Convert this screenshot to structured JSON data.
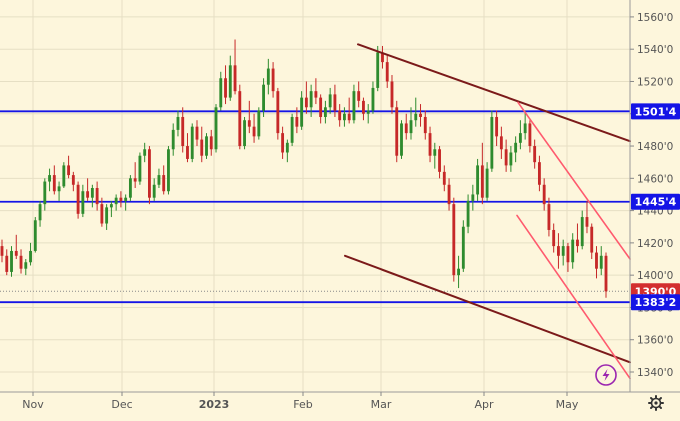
{
  "chart_data": {
    "type": "candlestick",
    "title": "",
    "x_labels": [
      "Nov",
      "Dec",
      "2023",
      "Feb",
      "Mar",
      "Apr",
      "May"
    ],
    "y_ticks": [
      "1560'0",
      "1540'0",
      "1520'0",
      "1500'0",
      "1480'0",
      "1460'0",
      "1440'0",
      "1420'0",
      "1400'0",
      "1380'0",
      "1360'0",
      "1340'0"
    ],
    "y_range": [
      1335,
      1570
    ],
    "price_tags": [
      {
        "label": "1501'4",
        "value": 1501.5,
        "style": "level"
      },
      {
        "label": "1445'4",
        "value": 1445.5,
        "style": "level"
      },
      {
        "label": "1390'0",
        "value": 1390.0,
        "style": "last"
      },
      {
        "label": "1383'2",
        "value": 1383.25,
        "style": "level"
      }
    ],
    "horizontal_levels": [
      1501.5,
      1445.5,
      1383.25
    ],
    "last_price": 1390.0,
    "trendlines": [
      {
        "color": "#7b1a1a",
        "points": [
          [
            0.09,
            1543
          ],
          [
            0.97,
            1483
          ]
        ]
      },
      {
        "color": "#7b1a1a",
        "points": [
          [
            0.0,
            1412
          ],
          [
            0.96,
            1346
          ]
        ]
      },
      {
        "color": "#ff5a6e",
        "points": [
          [
            0.28,
            1507
          ],
          [
            0.99,
            1410
          ]
        ]
      },
      {
        "color": "#ff5a6e",
        "points": [
          [
            0.15,
            1437
          ],
          [
            0.99,
            1336
          ]
        ]
      }
    ],
    "colors": {
      "up": "#2e8b2e",
      "down": "#c62828",
      "level": "#1414e6",
      "last": "#d32f2f",
      "background": "#fdf6dc"
    },
    "candles": [
      [
        1418,
        1422,
        1408,
        1412
      ],
      [
        1412,
        1416,
        1400,
        1402
      ],
      [
        1402,
        1418,
        1399,
        1415
      ],
      [
        1415,
        1425,
        1410,
        1412
      ],
      [
        1412,
        1416,
        1401,
        1404
      ],
      [
        1404,
        1410,
        1400,
        1408
      ],
      [
        1408,
        1420,
        1406,
        1415
      ],
      [
        1415,
        1436,
        1414,
        1434
      ],
      [
        1434,
        1446,
        1430,
        1444
      ],
      [
        1444,
        1460,
        1440,
        1458
      ],
      [
        1458,
        1466,
        1452,
        1462
      ],
      [
        1462,
        1468,
        1450,
        1452
      ],
      [
        1452,
        1458,
        1446,
        1455
      ],
      [
        1455,
        1470,
        1454,
        1468
      ],
      [
        1468,
        1474,
        1460,
        1462
      ],
      [
        1462,
        1464,
        1452,
        1456
      ],
      [
        1456,
        1458,
        1435,
        1438
      ],
      [
        1438,
        1456,
        1436,
        1452
      ],
      [
        1452,
        1460,
        1446,
        1448
      ],
      [
        1448,
        1456,
        1442,
        1454
      ],
      [
        1454,
        1458,
        1440,
        1444
      ],
      [
        1444,
        1448,
        1430,
        1432
      ],
      [
        1432,
        1444,
        1428,
        1442
      ],
      [
        1442,
        1446,
        1436,
        1444
      ],
      [
        1444,
        1450,
        1440,
        1448
      ],
      [
        1448,
        1452,
        1442,
        1446
      ],
      [
        1446,
        1450,
        1440,
        1448
      ],
      [
        1448,
        1462,
        1446,
        1460
      ],
      [
        1460,
        1470,
        1454,
        1458
      ],
      [
        1458,
        1476,
        1456,
        1474
      ],
      [
        1474,
        1482,
        1470,
        1478
      ],
      [
        1478,
        1480,
        1444,
        1448
      ],
      [
        1448,
        1460,
        1446,
        1456
      ],
      [
        1456,
        1466,
        1454,
        1462
      ],
      [
        1462,
        1468,
        1450,
        1452
      ],
      [
        1452,
        1480,
        1450,
        1478
      ],
      [
        1478,
        1494,
        1474,
        1490
      ],
      [
        1490,
        1502,
        1486,
        1498
      ],
      [
        1498,
        1504,
        1476,
        1480
      ],
      [
        1480,
        1488,
        1470,
        1472
      ],
      [
        1472,
        1494,
        1470,
        1492
      ],
      [
        1492,
        1496,
        1480,
        1484
      ],
      [
        1484,
        1492,
        1470,
        1474
      ],
      [
        1474,
        1488,
        1472,
        1486
      ],
      [
        1486,
        1490,
        1474,
        1478
      ],
      [
        1478,
        1506,
        1476,
        1504
      ],
      [
        1504,
        1526,
        1502,
        1522
      ],
      [
        1522,
        1530,
        1506,
        1510
      ],
      [
        1510,
        1536,
        1508,
        1530
      ],
      [
        1530,
        1546,
        1512,
        1514
      ],
      [
        1514,
        1518,
        1478,
        1480
      ],
      [
        1480,
        1498,
        1478,
        1496
      ],
      [
        1496,
        1508,
        1488,
        1492
      ],
      [
        1492,
        1500,
        1482,
        1486
      ],
      [
        1486,
        1504,
        1484,
        1502
      ],
      [
        1502,
        1522,
        1498,
        1518
      ],
      [
        1518,
        1534,
        1512,
        1528
      ],
      [
        1528,
        1532,
        1510,
        1514
      ],
      [
        1514,
        1516,
        1484,
        1488
      ],
      [
        1488,
        1492,
        1472,
        1476
      ],
      [
        1476,
        1484,
        1470,
        1482
      ],
      [
        1482,
        1500,
        1480,
        1498
      ],
      [
        1498,
        1504,
        1488,
        1492
      ],
      [
        1492,
        1514,
        1490,
        1510
      ],
      [
        1510,
        1520,
        1500,
        1504
      ],
      [
        1504,
        1518,
        1498,
        1514
      ],
      [
        1514,
        1522,
        1506,
        1510
      ],
      [
        1510,
        1512,
        1494,
        1498
      ],
      [
        1498,
        1508,
        1494,
        1504
      ],
      [
        1504,
        1516,
        1500,
        1512
      ],
      [
        1512,
        1518,
        1498,
        1502
      ],
      [
        1502,
        1506,
        1492,
        1496
      ],
      [
        1496,
        1504,
        1492,
        1500
      ],
      [
        1500,
        1510,
        1494,
        1496
      ],
      [
        1496,
        1518,
        1494,
        1514
      ],
      [
        1514,
        1520,
        1504,
        1508
      ],
      [
        1508,
        1510,
        1496,
        1500
      ],
      [
        1500,
        1506,
        1494,
        1502
      ],
      [
        1502,
        1520,
        1500,
        1516
      ],
      [
        1516,
        1542,
        1514,
        1538
      ],
      [
        1538,
        1542,
        1528,
        1532
      ],
      [
        1532,
        1536,
        1516,
        1520
      ],
      [
        1520,
        1524,
        1500,
        1504
      ],
      [
        1504,
        1508,
        1470,
        1474
      ],
      [
        1474,
        1496,
        1472,
        1494
      ],
      [
        1494,
        1500,
        1484,
        1488
      ],
      [
        1488,
        1504,
        1484,
        1496
      ],
      [
        1496,
        1510,
        1492,
        1500
      ],
      [
        1500,
        1506,
        1492,
        1498
      ],
      [
        1498,
        1502,
        1484,
        1488
      ],
      [
        1488,
        1492,
        1470,
        1474
      ],
      [
        1474,
        1482,
        1466,
        1478
      ],
      [
        1478,
        1480,
        1460,
        1464
      ],
      [
        1464,
        1468,
        1452,
        1456
      ],
      [
        1456,
        1460,
        1440,
        1444
      ],
      [
        1444,
        1448,
        1396,
        1400
      ],
      [
        1400,
        1412,
        1392,
        1404
      ],
      [
        1404,
        1434,
        1402,
        1430
      ],
      [
        1430,
        1450,
        1426,
        1446
      ],
      [
        1446,
        1456,
        1440,
        1450
      ],
      [
        1450,
        1472,
        1446,
        1468
      ],
      [
        1468,
        1482,
        1444,
        1448
      ],
      [
        1448,
        1470,
        1446,
        1466
      ],
      [
        1466,
        1502,
        1464,
        1498
      ],
      [
        1498,
        1502,
        1480,
        1486
      ],
      [
        1486,
        1492,
        1472,
        1478
      ],
      [
        1478,
        1484,
        1464,
        1468
      ],
      [
        1468,
        1480,
        1464,
        1476
      ],
      [
        1476,
        1486,
        1470,
        1482
      ],
      [
        1482,
        1496,
        1478,
        1488
      ],
      [
        1488,
        1502,
        1484,
        1494
      ],
      [
        1494,
        1496,
        1476,
        1480
      ],
      [
        1480,
        1484,
        1466,
        1470
      ],
      [
        1470,
        1474,
        1452,
        1456
      ],
      [
        1456,
        1460,
        1440,
        1444
      ],
      [
        1444,
        1448,
        1424,
        1428
      ],
      [
        1428,
        1432,
        1414,
        1418
      ],
      [
        1418,
        1426,
        1404,
        1412
      ],
      [
        1412,
        1422,
        1406,
        1418
      ],
      [
        1418,
        1420,
        1402,
        1408
      ],
      [
        1408,
        1426,
        1404,
        1422
      ],
      [
        1422,
        1432,
        1414,
        1418
      ],
      [
        1418,
        1440,
        1416,
        1436
      ],
      [
        1436,
        1446,
        1426,
        1430
      ],
      [
        1430,
        1432,
        1410,
        1414
      ],
      [
        1414,
        1418,
        1398,
        1404
      ],
      [
        1404,
        1418,
        1400,
        1412
      ],
      [
        1412,
        1414,
        1386,
        1390
      ]
    ]
  }
}
